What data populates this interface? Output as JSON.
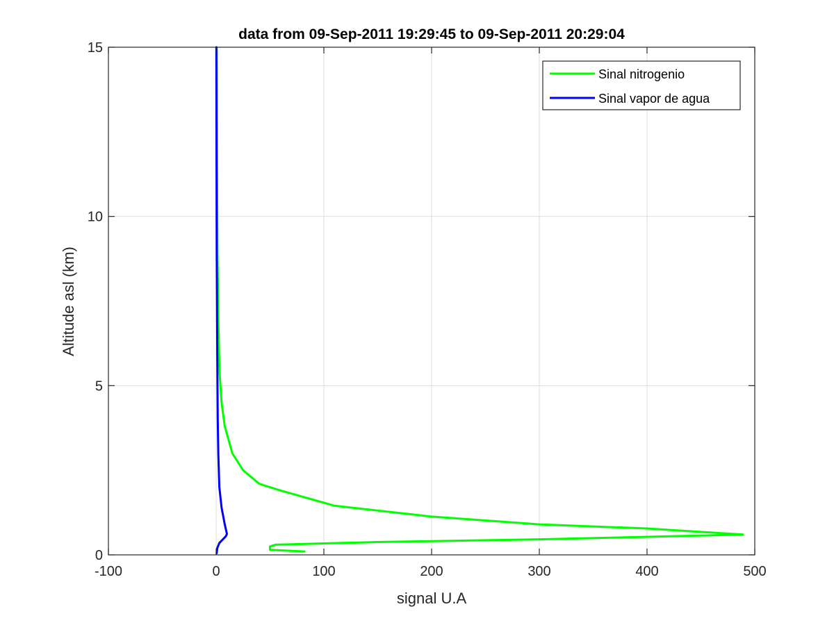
{
  "chart_data": {
    "type": "line",
    "title": "data from 09-Sep-2011 19:29:45 to 09-Sep-2011 20:29:04",
    "xlabel": "signal U.A",
    "ylabel": "Altitude asl (km)",
    "xlim": [
      -100,
      500
    ],
    "ylim": [
      0,
      15
    ],
    "xticks": [
      -100,
      0,
      100,
      200,
      300,
      400,
      500
    ],
    "yticks": [
      0,
      5,
      10,
      15
    ],
    "grid": true,
    "legend_position": "top-right",
    "series": [
      {
        "name": "Sinal nitrogenio",
        "color": "#00ff00",
        "x": [
          82,
          50,
          50,
          55,
          150,
          300,
          489,
          400,
          300,
          200,
          110,
          60,
          40,
          25,
          15,
          8,
          5,
          3,
          2,
          1.2,
          0.8,
          0.5
        ],
        "y": [
          0.1,
          0.15,
          0.25,
          0.3,
          0.38,
          0.46,
          0.6,
          0.78,
          0.9,
          1.13,
          1.45,
          1.9,
          2.1,
          2.5,
          3.0,
          3.8,
          4.5,
          5.5,
          7,
          9,
          12,
          15
        ]
      },
      {
        "name": "Sinal vapor de agua",
        "color": "#0000ff",
        "x": [
          0.5,
          1,
          3,
          6,
          9,
          10,
          8,
          5,
          3,
          2,
          1.5,
          1,
          0.5,
          0.3,
          0.2
        ],
        "y": [
          0.05,
          0.2,
          0.35,
          0.45,
          0.55,
          0.62,
          0.9,
          1.4,
          2,
          3,
          4,
          6,
          9,
          12,
          15
        ]
      }
    ]
  }
}
